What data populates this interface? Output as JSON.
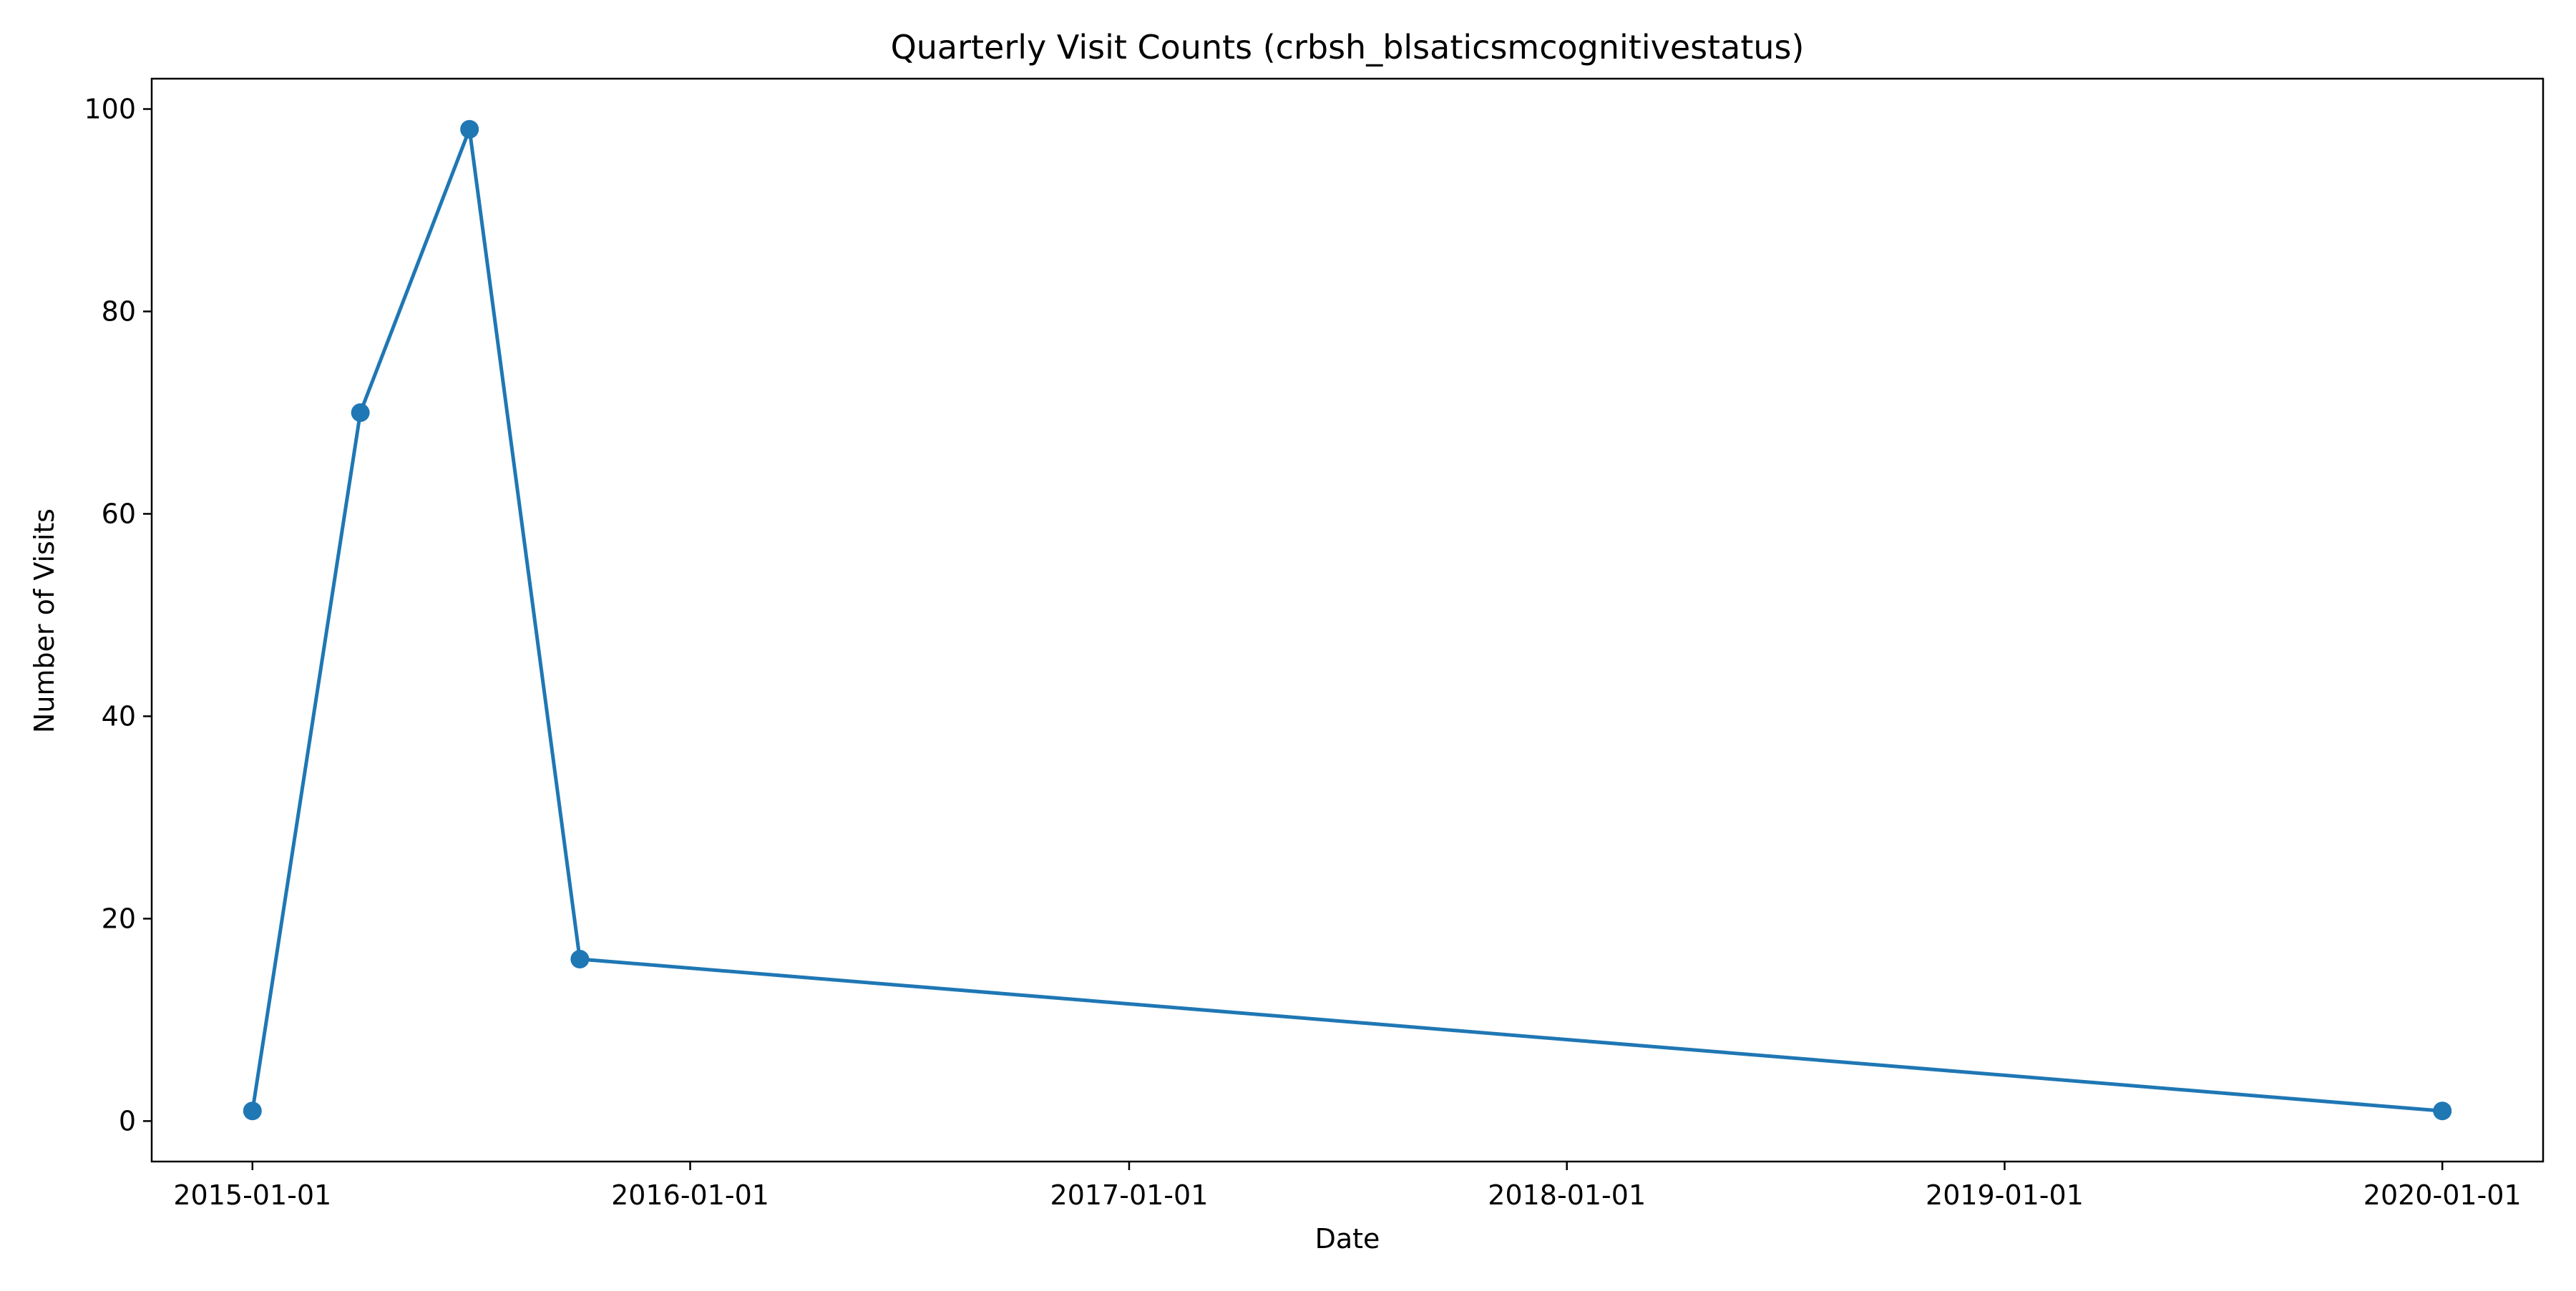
{
  "chart_data": {
    "type": "line",
    "title": "Quarterly Visit Counts (crbsh_blsaticsmcognitivestatus)",
    "xlabel": "Date",
    "ylabel": "Number of Visits",
    "x_tick_labels": [
      "2015-01-01",
      "2016-01-01",
      "2017-01-01",
      "2018-01-01",
      "2019-01-01",
      "2020-01-01"
    ],
    "y_ticks": [
      0,
      20,
      40,
      60,
      80,
      100
    ],
    "ylim": [
      -4,
      103
    ],
    "xlim": [
      "2014-10-09",
      "2020-03-25"
    ],
    "grid": false,
    "series": [
      {
        "color": "#1f77b4",
        "marker": "circle",
        "points": [
          {
            "x": "2015-01-01",
            "y": 1
          },
          {
            "x": "2015-04-01",
            "y": 70
          },
          {
            "x": "2015-07-01",
            "y": 98
          },
          {
            "x": "2015-10-01",
            "y": 16
          },
          {
            "x": "2020-01-01",
            "y": 1
          }
        ]
      }
    ]
  }
}
